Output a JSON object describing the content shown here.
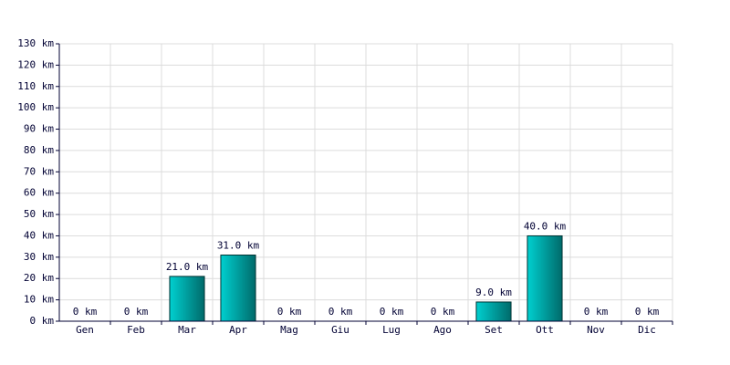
{
  "chart_data": {
    "type": "bar",
    "categories": [
      "Gen",
      "Feb",
      "Mar",
      "Apr",
      "Mag",
      "Giu",
      "Lug",
      "Ago",
      "Set",
      "Ott",
      "Nov",
      "Dic"
    ],
    "values": [
      0,
      0,
      21,
      31,
      0,
      0,
      0,
      0,
      9,
      40,
      0,
      0
    ],
    "value_labels": [
      "0 km",
      "0 km",
      "21.0 km",
      "31.0 km",
      "0 km",
      "0 km",
      "0 km",
      "0 km",
      "9.0 km",
      "40.0 km",
      "0 km",
      "0 km"
    ],
    "color": "#00d0d0",
    "ylim": [
      0,
      130
    ],
    "yticks": [
      {
        "value": 0,
        "label": "0 km"
      },
      {
        "value": 10,
        "label": "10 km"
      },
      {
        "value": 20,
        "label": "20 km"
      },
      {
        "value": 30,
        "label": "30 km"
      },
      {
        "value": 40,
        "label": "40 km"
      },
      {
        "value": 50,
        "label": "50 km"
      },
      {
        "value": 60,
        "label": "60 km"
      },
      {
        "value": 70,
        "label": "70 km"
      },
      {
        "value": 80,
        "label": "80 km"
      },
      {
        "value": 90,
        "label": "90 km"
      },
      {
        "value": 100,
        "label": "100 km"
      },
      {
        "value": 110,
        "label": "110 km"
      },
      {
        "value": 120,
        "label": "120 km"
      },
      {
        "value": 130,
        "label": "130 km"
      }
    ],
    "grid": true
  }
}
